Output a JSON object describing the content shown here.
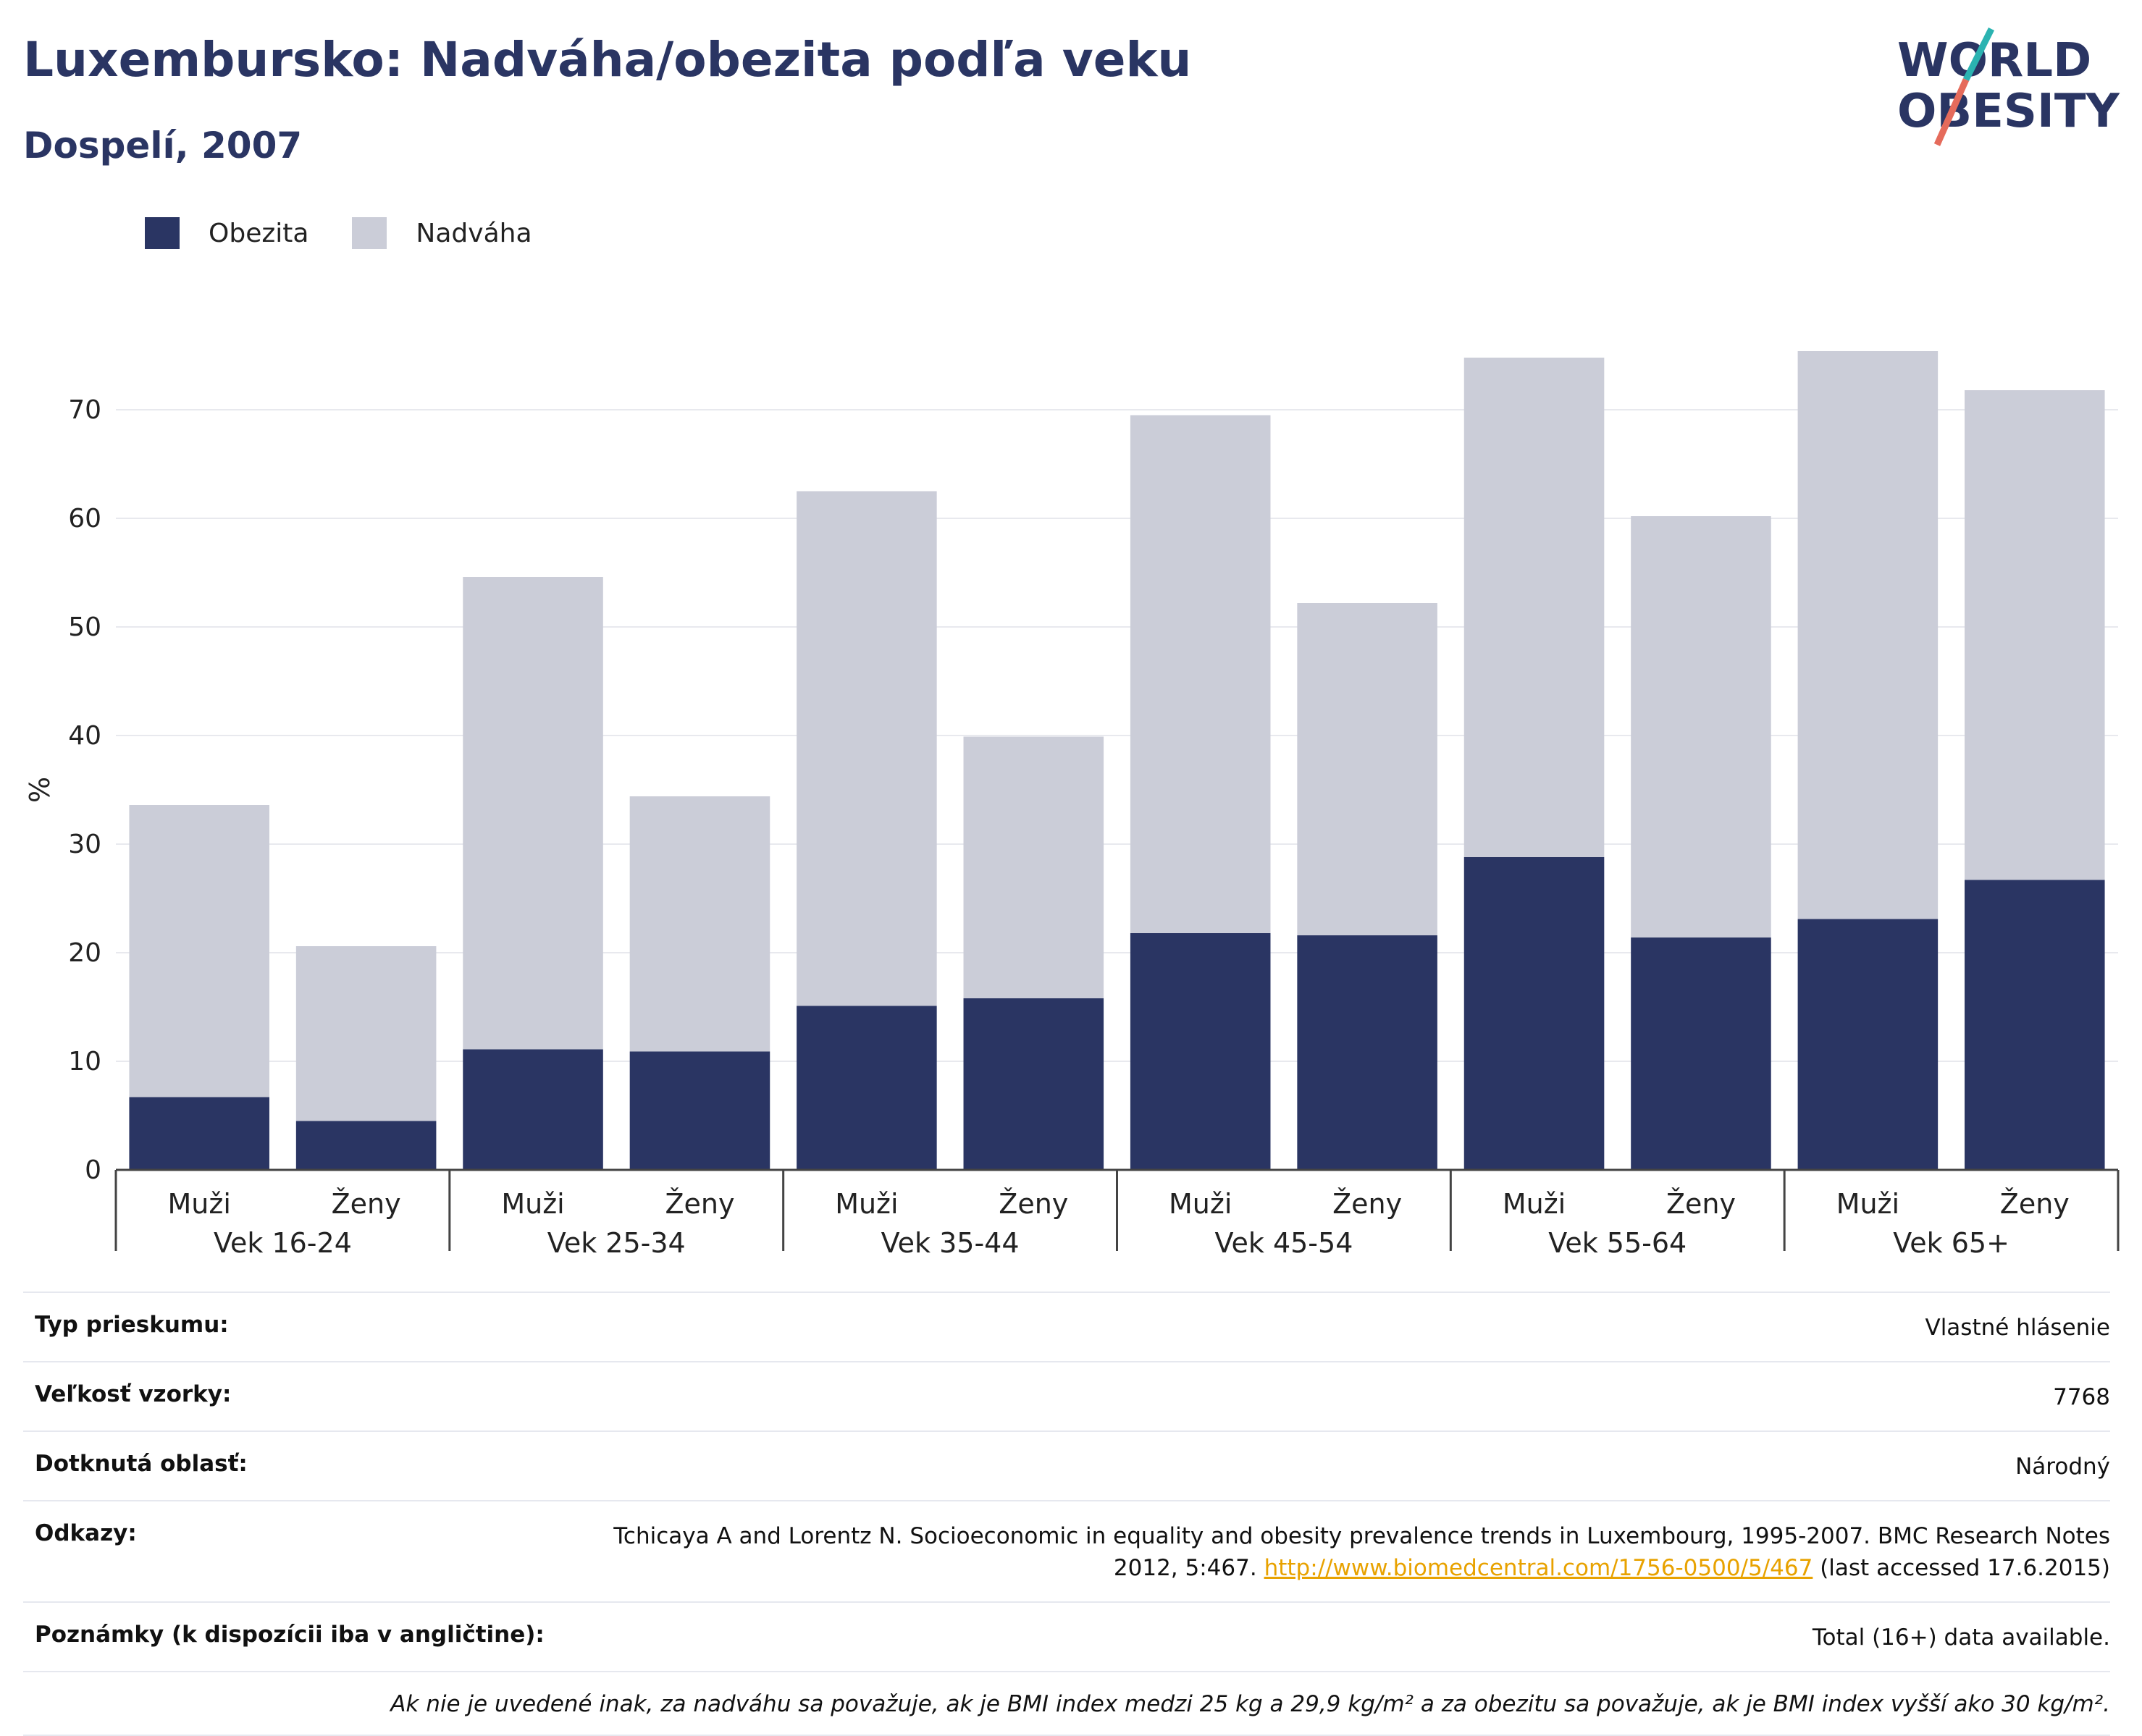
{
  "title": "Luxembursko: Nadváha/obezita podľa veku",
  "subtitle": "Dospelí, 2007",
  "logo": {
    "line1": "WORLD",
    "line2": "OBESITY"
  },
  "legend": {
    "obesity": "Obezita",
    "overweight": "Nadváha"
  },
  "colors": {
    "obesity": "#2a3563",
    "overweight": "#cbcdd8",
    "accent_teal": "#2bb3b1",
    "accent_red": "#e56b5b",
    "link": "#e8a200"
  },
  "chart_data": {
    "type": "bar",
    "stacked": true,
    "ylabel": "%",
    "ylim": [
      0,
      80
    ],
    "yticks": [
      0,
      10,
      20,
      30,
      40,
      50,
      60,
      70
    ],
    "grid": true,
    "legend_position": "top-left",
    "groups": [
      "Vek 16-24",
      "Vek 25-34",
      "Vek 35-44",
      "Vek 45-54",
      "Vek 55-64",
      "Vek 65+"
    ],
    "subcategories": [
      "Muži",
      "Ženy"
    ],
    "series": [
      {
        "name": "Obezita",
        "values": [
          6.7,
          4.5,
          11.1,
          10.9,
          15.1,
          15.8,
          21.8,
          21.6,
          28.8,
          21.4,
          23.1,
          26.7
        ]
      },
      {
        "name": "Nadváha",
        "values": [
          26.9,
          16.1,
          43.5,
          23.5,
          47.4,
          24.1,
          47.7,
          30.6,
          46.0,
          38.8,
          52.3,
          45.1
        ]
      }
    ]
  },
  "meta": {
    "survey_type_label": "Typ prieskumu:",
    "survey_type_value": "Vlastné hlásenie",
    "sample_size_label": "Veľkosť vzorky:",
    "sample_size_value": "7768",
    "area_label": "Dotknutá oblasť:",
    "area_value": "Národný",
    "references_label": "Odkazy:",
    "references_text": "Tchicaya A and Lorentz N. Socioeconomic in equality and obesity prevalence trends in Luxembourg, 1995-2007. BMC Research Notes 2012, 5:467.",
    "references_link": "http://www.biomedcentral.com/1756-0500/5/467",
    "references_accessed": "(last accessed 17.6.2015)",
    "notes_label": "Poznámky (k dispozícii iba v angličtine):",
    "notes_value": "Total (16+) data available.",
    "footnote": "Ak nie je uvedené inak, za nadváhu sa považuje, ak je BMI index medzi 25 kg a 29,9 kg/m² a za obezitu sa považuje, ak je BMI index vyšší ako 30 kg/m²."
  }
}
